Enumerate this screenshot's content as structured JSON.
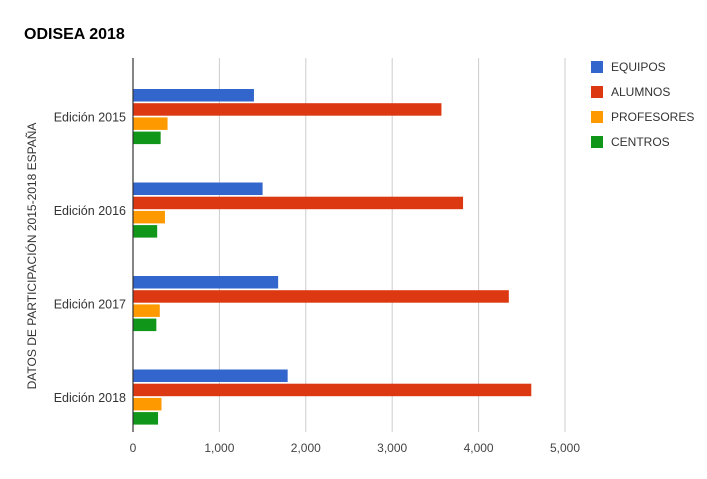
{
  "chart_data": {
    "type": "bar",
    "orientation": "horizontal",
    "title": "ODISEA 2018",
    "ylabel": "DATOS DE PARTICIPACIÓN 2015-2018 ESPAÑA",
    "xlabel": "",
    "categories": [
      "Edición 2015",
      "Edición 2016",
      "Edición 2017",
      "Edición 2018"
    ],
    "xlim": [
      0,
      5000
    ],
    "xticks": [
      0,
      1000,
      2000,
      3000,
      4000,
      5000
    ],
    "xtick_labels": [
      "0",
      "1,000",
      "2,000",
      "3,000",
      "4,000",
      "5,000"
    ],
    "grid": true,
    "legend_position": "right",
    "series": [
      {
        "name": "EQUIPOS",
        "color": "#3366cc",
        "values": [
          1400,
          1500,
          1680,
          1790
        ]
      },
      {
        "name": "ALUMNOS",
        "color": "#dc3912",
        "values": [
          3570,
          3820,
          4350,
          4610
        ]
      },
      {
        "name": "PROFESORES",
        "color": "#ff9900",
        "values": [
          400,
          370,
          310,
          330
        ]
      },
      {
        "name": "CENTROS",
        "color": "#109618",
        "values": [
          320,
          280,
          270,
          290
        ]
      }
    ]
  }
}
